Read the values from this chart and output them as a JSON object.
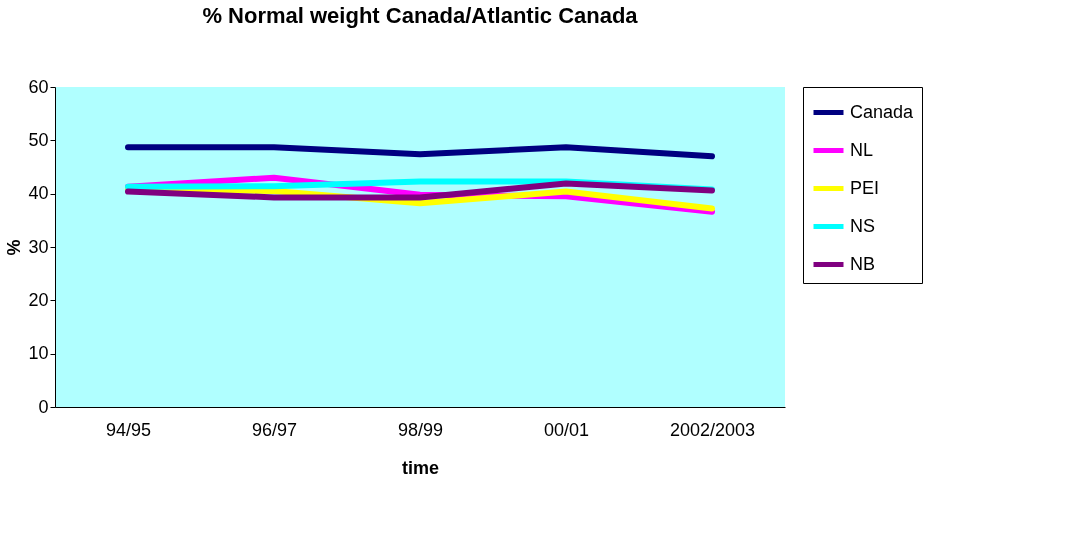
{
  "chart_data": {
    "type": "line",
    "title": "% Normal weight Canada/Atlantic Canada",
    "xlabel": "time",
    "ylabel": "%",
    "categories": [
      "94/95",
      "96/97",
      "98/99",
      "00/01",
      "2002/2003"
    ],
    "series": [
      {
        "name": "Canada",
        "color": "#000080",
        "values": [
          48.7,
          48.7,
          47.4,
          48.7,
          47.0
        ]
      },
      {
        "name": "NL",
        "color": "#ff00ff",
        "values": [
          41.3,
          43.0,
          39.8,
          39.5,
          36.6
        ]
      },
      {
        "name": "PEI",
        "color": "#ffff00",
        "values": [
          41.0,
          40.5,
          38.2,
          40.4,
          37.2
        ]
      },
      {
        "name": "NS",
        "color": "#00ffff",
        "values": [
          41.3,
          41.4,
          42.3,
          42.3,
          40.8
        ]
      },
      {
        "name": "NB",
        "color": "#800080",
        "values": [
          40.4,
          39.3,
          39.3,
          41.9,
          40.6
        ]
      }
    ],
    "ylim": [
      0,
      60
    ],
    "yticks": [
      0,
      10,
      20,
      30,
      40,
      50,
      60
    ],
    "grid": false,
    "legend": "right",
    "marker": "none",
    "line_style": "solid"
  }
}
